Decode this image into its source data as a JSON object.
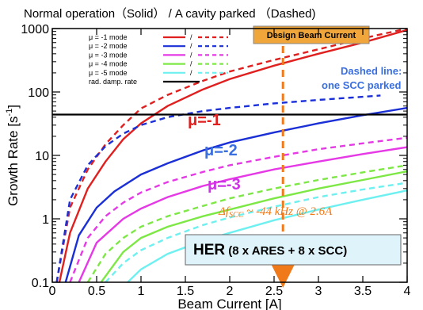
{
  "chart_data": {
    "type": "line",
    "title": "Normal operation（Solid）  /  A cavity parked  （Dashed)",
    "xlabel": "Beam Current [A]",
    "ylabel": "Growth Rate [s",
    "ylabel_sup": "-1",
    "ylabel_end": "]",
    "xlim": [
      0,
      4
    ],
    "ylim": [
      0.1,
      1000
    ],
    "yscale": "log",
    "x_ticks": [
      "0",
      "0.5",
      "1",
      "1.5",
      "2",
      "2.5",
      "3",
      "3.5",
      "4"
    ],
    "y_ticks": [
      "0.1",
      "1",
      "10",
      "100",
      "1000"
    ],
    "grid": false,
    "legend_position": "top-left",
    "legend": [
      {
        "label": "μ = -1 mode",
        "color": "#e01f1f"
      },
      {
        "label": "μ = -2 mode",
        "color": "#1a2fd6"
      },
      {
        "label": "μ = -3 mode",
        "color": "#e639e6"
      },
      {
        "label": "μ = -4 mode",
        "color": "#7de845"
      },
      {
        "label": "μ = -5 mode",
        "color": "#6ff0f0"
      },
      {
        "label": "rad. damp. rate",
        "color": "#000000"
      }
    ],
    "legend_separator": "/",
    "series": [
      {
        "name": "μ = -1 mode",
        "style": "solid",
        "color": "#e01f1f",
        "x": [
          0.08,
          0.2,
          0.4,
          0.6,
          0.8,
          1.0,
          1.3,
          1.7,
          2.0,
          2.5,
          3.0,
          3.5,
          4.0
        ],
        "y": [
          0.1,
          0.6,
          3,
          8,
          18,
          32,
          60,
          110,
          160,
          260,
          400,
          600,
          950
        ]
      },
      {
        "name": "μ = -1 mode",
        "style": "dashed",
        "color": "#e01f1f",
        "x": [
          0.05,
          0.2,
          0.4,
          0.6,
          0.8,
          1.0,
          1.3,
          1.7,
          2.0,
          2.5,
          3.0,
          3.5,
          4.0
        ],
        "y": [
          0.1,
          1.5,
          6,
          15,
          30,
          55,
          90,
          150,
          210,
          320,
          470,
          700,
          1000
        ]
      },
      {
        "name": "μ = -2 mode",
        "style": "solid",
        "color": "#1a2fd6",
        "x": [
          0.15,
          0.3,
          0.5,
          0.7,
          1.0,
          1.3,
          1.7,
          2.0,
          2.5,
          3.0,
          3.5,
          4.0
        ],
        "y": [
          0.1,
          0.55,
          1.5,
          2.7,
          5,
          7.5,
          12,
          16,
          23,
          32,
          43,
          56
        ]
      },
      {
        "name": "μ = -2 mode",
        "style": "dashed",
        "color": "#1a2fd6",
        "x": [
          0.05,
          0.2,
          0.4,
          0.6,
          0.8,
          1.0,
          1.3,
          1.7,
          2.0,
          2.5,
          3.0,
          3.5,
          3.7
        ],
        "y": [
          0.1,
          2,
          7,
          14,
          22,
          30,
          40,
          50,
          56,
          66,
          75,
          84,
          88
        ]
      },
      {
        "name": "μ = -3 mode",
        "style": "solid",
        "color": "#e639e6",
        "x": [
          0.3,
          0.5,
          0.8,
          1.0,
          1.3,
          1.7,
          2.0,
          2.5,
          3.0,
          3.5,
          4.0
        ],
        "y": [
          0.1,
          0.42,
          1.0,
          1.45,
          2.2,
          3.3,
          4.2,
          6.0,
          8.0,
          10.5,
          13.5
        ]
      },
      {
        "name": "μ = -3 mode",
        "style": "dashed",
        "color": "#e639e6",
        "x": [
          0.2,
          0.4,
          0.6,
          0.8,
          1.0,
          1.3,
          1.7,
          2.0,
          2.5,
          3.0,
          3.5,
          4.0
        ],
        "y": [
          0.1,
          0.5,
          1.1,
          1.8,
          2.6,
          3.8,
          5.5,
          7,
          9.5,
          12.5,
          15.5,
          19
        ]
      },
      {
        "name": "μ = -4 mode",
        "style": "solid",
        "color": "#7de845",
        "x": [
          0.55,
          0.8,
          1.0,
          1.3,
          1.7,
          2.0,
          2.5,
          3.0,
          3.5,
          4.0
        ],
        "y": [
          0.1,
          0.3,
          0.5,
          0.75,
          1.1,
          1.4,
          2.1,
          3.0,
          4.1,
          5.6
        ]
      },
      {
        "name": "μ = -4 mode",
        "style": "dashed",
        "color": "#7de845",
        "x": [
          0.4,
          0.6,
          0.8,
          1.0,
          1.3,
          1.7,
          2.0,
          2.5,
          3.0,
          3.5,
          4.0
        ],
        "y": [
          0.1,
          0.28,
          0.5,
          0.75,
          1.1,
          1.6,
          2.1,
          3.0,
          4.1,
          5.4,
          7.0
        ]
      },
      {
        "name": "μ = -5 mode",
        "style": "solid",
        "color": "#6ff0f0",
        "x": [
          0.85,
          1.0,
          1.3,
          1.7,
          2.0,
          2.5,
          3.0,
          3.5,
          4.0
        ],
        "y": [
          0.1,
          0.16,
          0.28,
          0.45,
          0.6,
          0.95,
          1.4,
          2.0,
          2.8
        ]
      },
      {
        "name": "μ = -5 mode",
        "style": "dashed",
        "color": "#6ff0f0",
        "x": [
          0.6,
          0.8,
          1.0,
          1.3,
          1.7,
          2.0,
          2.5,
          3.0,
          3.5,
          4.0
        ],
        "y": [
          0.1,
          0.2,
          0.32,
          0.5,
          0.8,
          1.05,
          1.55,
          2.2,
          2.9,
          3.7
        ]
      },
      {
        "name": "rad. damp. rate",
        "style": "solid",
        "color": "#000000",
        "x": [
          0,
          4
        ],
        "y": [
          44,
          44
        ]
      }
    ],
    "annotations": {
      "mu1_label": "μ=-1",
      "mu2_label": "μ=-2",
      "mu3_label": "μ=-3",
      "dashed_note_line1": "Dashed line:",
      "dashed_note_line2": "one SCC parked",
      "design_current_label": "Design Beam Current",
      "design_current_x": 2.6,
      "detune_text": "Δf",
      "detune_sub": "SCC",
      "detune_rest": " ~ -44 kHz @ 2.6A",
      "her_main": "HER",
      "her_sub": " (8 x ARES + 8 x SCC)"
    },
    "colors": {
      "mu1": "#e01f1f",
      "mu2": "#1a2fd6",
      "mu3": "#e639e6",
      "mu2_label": "#3a6fe0",
      "mu3_label": "#cc33e6",
      "arrow": "#f07a1a",
      "design_box": "#f0a63a",
      "her_box": "#dff3fb"
    }
  }
}
